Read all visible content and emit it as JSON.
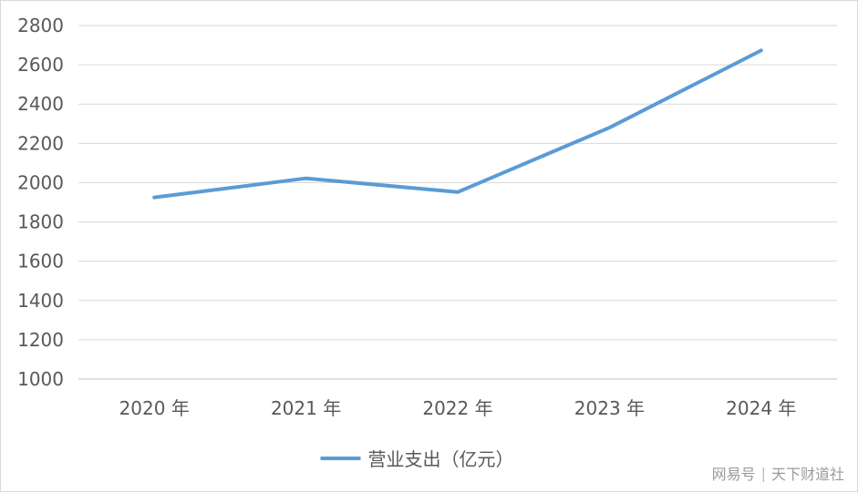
{
  "chart_data": {
    "type": "line",
    "categories": [
      "2020 年",
      "2021 年",
      "2022 年",
      "2023 年",
      "2024 年"
    ],
    "series": [
      {
        "name": "营业支出（亿元）",
        "values": [
          1925,
          2022,
          1952,
          2280,
          2673
        ],
        "color": "#5b9bd5"
      }
    ],
    "ylim": [
      1000,
      2800
    ],
    "yticks": [
      1000,
      1200,
      1400,
      1600,
      1800,
      2000,
      2200,
      2400,
      2600,
      2800
    ],
    "grid": true,
    "legend_position": "bottom-center",
    "title": "",
    "xlabel": "",
    "ylabel": ""
  },
  "watermark": {
    "brand": "网易号",
    "source": "天下财道社"
  }
}
